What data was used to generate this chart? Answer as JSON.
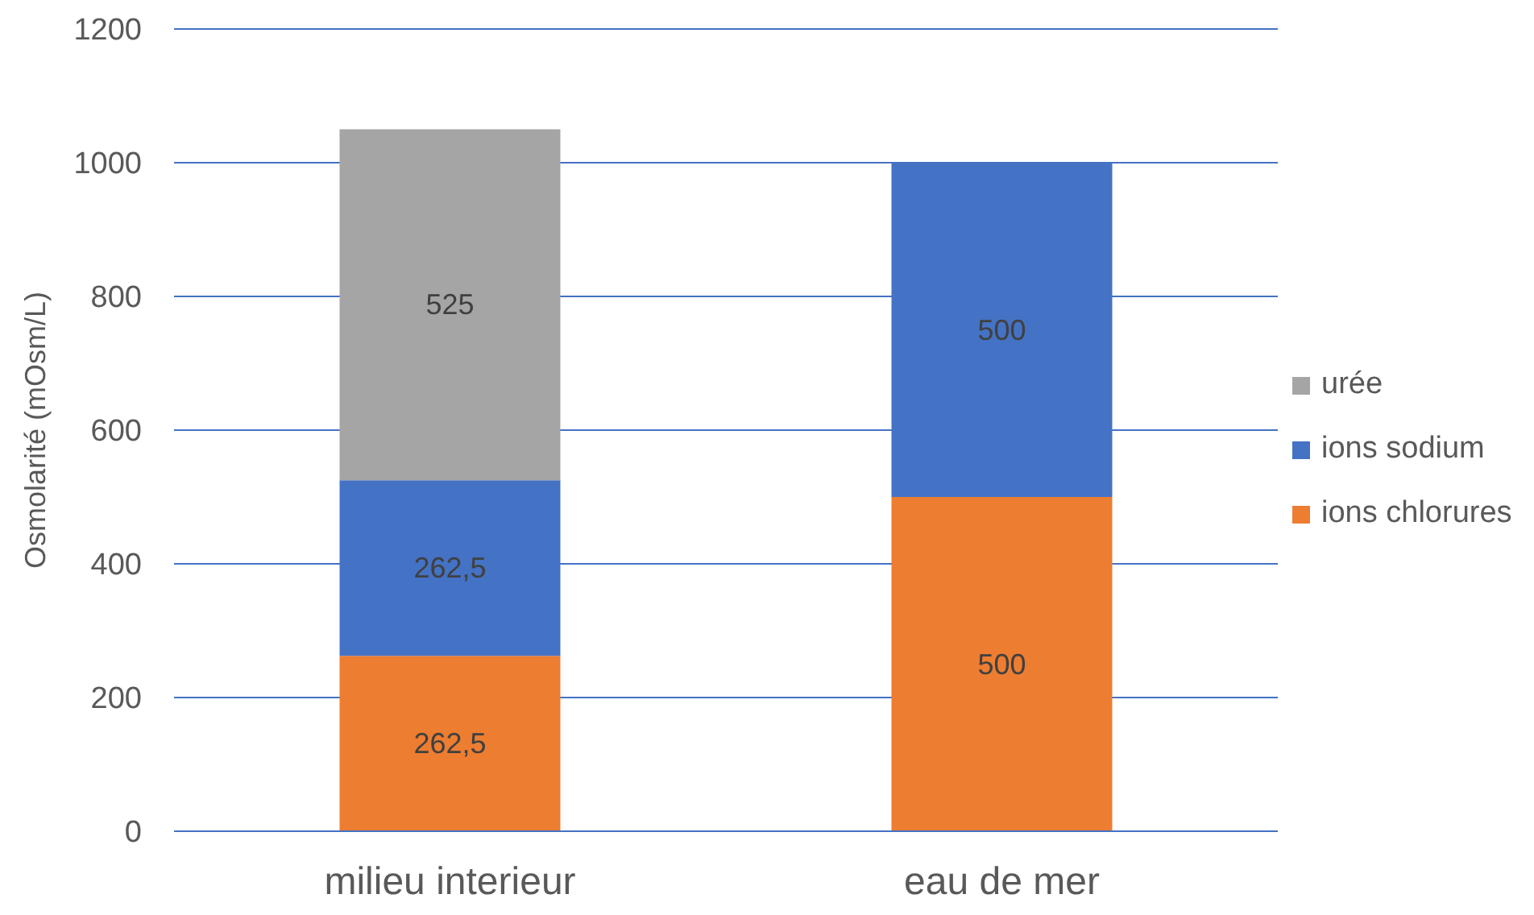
{
  "chart_data": {
    "type": "bar",
    "stacked": true,
    "ylabel": "Osmolarité (mOsm/L)",
    "categories": [
      "milieu interieur",
      "eau de mer"
    ],
    "series": [
      {
        "name": "ions chlorures",
        "color": "#ed7d31",
        "values": [
          262.5,
          500
        ],
        "value_labels": [
          "262,5",
          "500"
        ]
      },
      {
        "name": "ions sodium",
        "color": "#4472c4",
        "values": [
          262.5,
          500
        ],
        "value_labels": [
          "262,5",
          "500"
        ]
      },
      {
        "name": "urée",
        "color": "#a5a5a5",
        "values": [
          525,
          null
        ],
        "value_labels": [
          "525",
          null
        ]
      }
    ],
    "ylim": [
      0,
      1200
    ],
    "yticks": [
      0,
      200,
      400,
      600,
      800,
      1000,
      1200
    ],
    "grid": "y",
    "legend": "right"
  }
}
